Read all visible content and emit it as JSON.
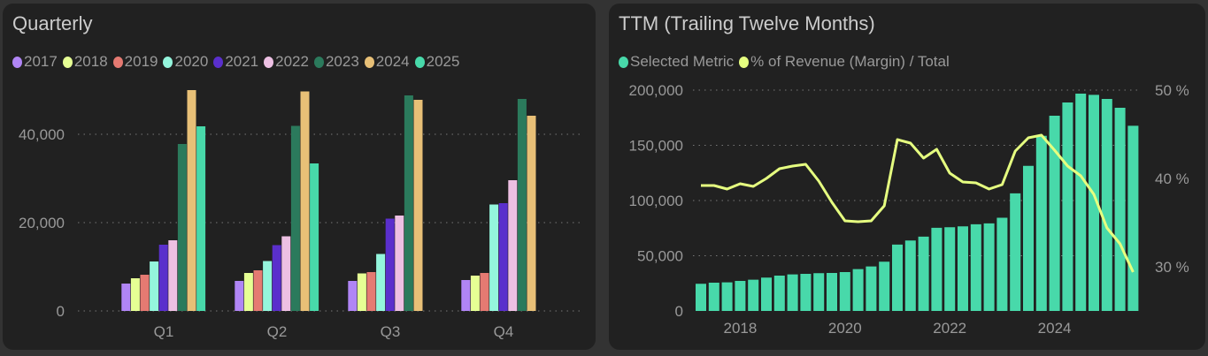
{
  "chart_data": [
    {
      "type": "bar",
      "title": "Quarterly",
      "categories": [
        "Q1",
        "Q2",
        "Q3",
        "Q4"
      ],
      "yticks": [
        "0",
        "20,000",
        "40,000"
      ],
      "ylim": [
        0,
        50000
      ],
      "grid": true,
      "legend": "top-left",
      "series": [
        {
          "name": "2017",
          "color": "#b085f5",
          "values": [
            6200,
            6800,
            6800,
            7000
          ]
        },
        {
          "name": "2018",
          "color": "#e6ff94",
          "values": [
            7400,
            8600,
            8500,
            8000
          ]
        },
        {
          "name": "2019",
          "color": "#e57a72",
          "values": [
            8200,
            9200,
            8800,
            8600
          ]
        },
        {
          "name": "2020",
          "color": "#94f5dc",
          "values": [
            11200,
            11300,
            12900,
            24100
          ]
        },
        {
          "name": "2021",
          "color": "#5a2fcc",
          "values": [
            15000,
            14900,
            20900,
            24400
          ]
        },
        {
          "name": "2022",
          "color": "#edc0e3",
          "values": [
            16000,
            16900,
            21600,
            29600
          ]
        },
        {
          "name": "2023",
          "color": "#2b7a5c",
          "values": [
            37800,
            41900,
            48800,
            48000
          ]
        },
        {
          "name": "2024",
          "color": "#e8c077",
          "values": [
            50000,
            49700,
            47800,
            44200
          ]
        },
        {
          "name": "2025",
          "color": "#48d9aa",
          "values": [
            41800,
            33400,
            null,
            null
          ]
        }
      ]
    },
    {
      "type": "bar+line",
      "title": "TTM (Trailing Twelve Months)",
      "legend": "top-left",
      "xticks": [
        "2018",
        "2020",
        "2022",
        "2024"
      ],
      "yticks": [
        "0",
        "50,000",
        "100,000",
        "150,000",
        "200,000"
      ],
      "ylim": [
        0,
        200000
      ],
      "y2ticks": [
        "30 %",
        "40 %",
        "50 %"
      ],
      "y2lim": [
        25,
        50
      ],
      "series": [
        {
          "name": "Selected Metric",
          "color": "#48d9aa",
          "values": [
            24600,
            25600,
            25900,
            27200,
            28300,
            30200,
            32000,
            33100,
            33600,
            34200,
            34400,
            35200,
            37900,
            40300,
            44600,
            60100,
            63800,
            67300,
            75300,
            75800,
            76600,
            78500,
            79300,
            84400,
            106500,
            131400,
            158600,
            176800,
            188800,
            196800,
            195700,
            192000,
            184000,
            167700
          ]
        },
        {
          "name": "% of Revenue (Margin) / Total",
          "color": "#e6ff80",
          "values": [
            39.2,
            39.2,
            38.8,
            39.4,
            39.1,
            40.0,
            41.1,
            41.4,
            41.6,
            39.7,
            37.3,
            35.2,
            35.1,
            35.2,
            36.9,
            44.4,
            44.0,
            42.3,
            43.3,
            40.6,
            39.6,
            39.5,
            38.8,
            39.3,
            43.1,
            44.6,
            44.9,
            43.2,
            41.4,
            40.3,
            38.2,
            34.4,
            32.6,
            29.4
          ]
        }
      ]
    }
  ]
}
